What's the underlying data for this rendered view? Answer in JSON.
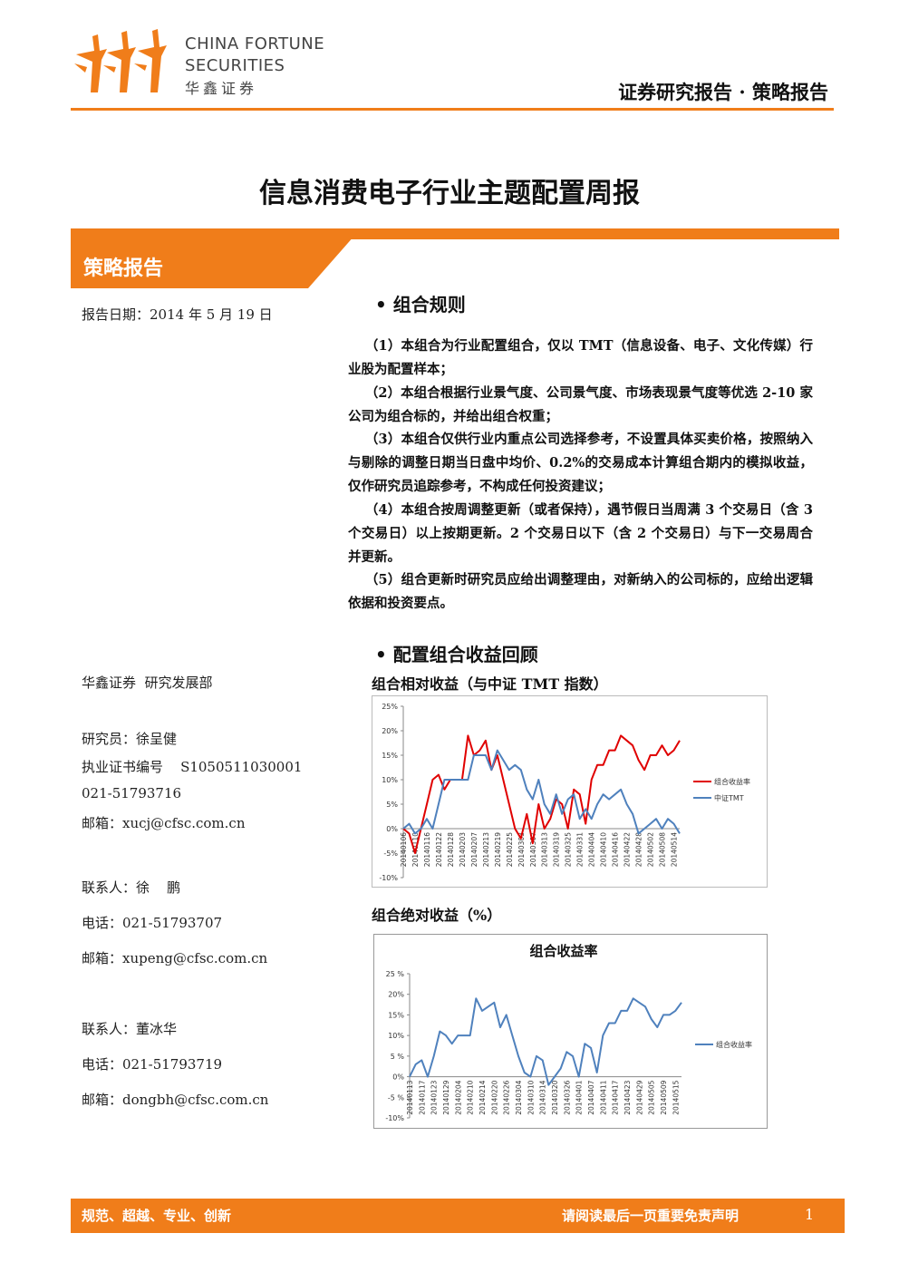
{
  "header": {
    "brand_line1": "CHINA FORTUNE",
    "brand_line2": "SECURITIES",
    "brand_cn": "华鑫证券",
    "category": "证券研究报告 · 策略报告"
  },
  "title": "信息消费电子行业主题配置周报",
  "section_label": "策略报告",
  "report_date": "报告日期：2014 年 5 月 19 日",
  "rules_heading": "组合规则",
  "rules": [
    "（1）本组合为行业配置组合，仅以 TMT（信息设备、电子、文化传媒）行业股为配置样本；",
    "（2）本组合根据行业景气度、公司景气度、市场表现景气度等优选 2-10 家公司为组合标的，并给出组合权重；",
    "（3）本组合仅供行业内重点公司选择参考，不设置具体买卖价格，按照纳入与剔除的调整日期当日盘中均价、0.2%的交易成本计算组合期内的模拟收益，仅作研究员追踪参考，不构成任何投资建议；",
    "（4）本组合按周调整更新（或者保持），遇节假日当周满 3 个交易日（含 3 个交易日）以上按期更新。2 个交易日以下（含 2 个交易日）与下一交易周合并更新。",
    "（5）组合更新时研究员应给出调整理由，对新纳入的公司标的，应给出逻辑依据和投资要点。"
  ],
  "review_heading": "配置组合收益回顾",
  "chart_headings": [
    "组合相对收益（与中证 TMT 指数）",
    "组合绝对收益（%）"
  ],
  "contacts": [
    "华鑫证券  研究发展部",
    "研究员：徐呈健",
    "执业证书编号    S1050511030001",
    "021-51793716",
    "邮箱：xucj@cfsc.com.cn",
    "联系人：徐    鹏",
    "电话：021-51793707",
    "邮箱：xupeng@cfsc.com.cn",
    "联系人：董冰华",
    "电话：021-51793719",
    "邮箱：dongbh@cfsc.com.cn"
  ],
  "chart_data": [
    {
      "type": "line",
      "categories": [
        "20140106",
        null,
        "20140110",
        null,
        "20140116",
        null,
        "20140122",
        null,
        "20140128",
        null,
        "20140203",
        null,
        "20140207",
        null,
        "20140213",
        null,
        "20140219",
        null,
        "20140225",
        null,
        "20140303",
        null,
        "20140307",
        null,
        "20140313",
        null,
        "20140319",
        null,
        "20140325",
        null,
        "20140331",
        null,
        "20140404",
        null,
        "20140410",
        null,
        "20140416",
        null,
        "20140422",
        null,
        "20140428",
        null,
        "20140502",
        null,
        "20140508",
        null,
        "20140514",
        null
      ],
      "series": [
        {
          "name": "组合收益率",
          "color": "#e00000",
          "values": [
            0,
            -1,
            -5,
            0,
            5,
            10,
            11,
            8,
            10,
            10,
            10,
            19,
            15,
            16,
            18,
            12,
            15,
            10,
            5,
            0,
            -2,
            3,
            -3,
            5,
            0,
            2,
            6,
            5,
            0,
            8,
            7,
            1,
            10,
            13,
            13,
            16,
            16,
            19,
            18,
            17,
            14,
            12,
            15,
            15,
            17,
            15,
            16,
            18
          ]
        },
        {
          "name": "中证TMT",
          "color": "#4f81bd",
          "values": [
            0,
            1,
            -1,
            0,
            2,
            0,
            5,
            10,
            10,
            10,
            10,
            10,
            15,
            15,
            15,
            12,
            16,
            14,
            12,
            13,
            12,
            8,
            6,
            10,
            5,
            3,
            7,
            3,
            6,
            7,
            2,
            4,
            2,
            5,
            7,
            6,
            7,
            8,
            5,
            3,
            -1,
            0,
            1,
            2,
            0,
            2,
            1,
            -1
          ]
        }
      ],
      "ylim": [
        -10,
        25
      ],
      "yticks": [
        {
          "value": -10,
          "label": "-10%"
        },
        {
          "value": -5,
          "label": "-5%"
        },
        {
          "value": 0,
          "label": "0%"
        },
        {
          "value": 5,
          "label": "5%"
        },
        {
          "value": 10,
          "label": "10%"
        },
        {
          "value": 15,
          "label": "15%"
        },
        {
          "value": 20,
          "label": "20%"
        },
        {
          "value": 25,
          "label": "25%"
        }
      ],
      "grid": false,
      "legend": "right"
    },
    {
      "type": "line",
      "title": "组合收益率",
      "categories": [
        "20140113",
        null,
        "20140117",
        null,
        "20140123",
        null,
        "20140129",
        null,
        "20140204",
        null,
        "20140210",
        null,
        "20140214",
        null,
        "20140220",
        null,
        "20140226",
        null,
        "20140304",
        null,
        "20140310",
        null,
        "20140314",
        null,
        "20140320",
        null,
        "20140326",
        null,
        "20140401",
        null,
        "20140407",
        null,
        "20140411",
        null,
        "20140417",
        null,
        "20140423",
        null,
        "20140429",
        null,
        "20140505",
        null,
        "20140509",
        null,
        "20140515",
        null
      ],
      "series": [
        {
          "name": "组合收益率",
          "color": "#4f81bd",
          "values": [
            0,
            3,
            4,
            0,
            5,
            11,
            10,
            8,
            10,
            10,
            10,
            19,
            16,
            17,
            18,
            12,
            15,
            10,
            5,
            1,
            0,
            5,
            4,
            -2,
            0,
            2,
            6,
            5,
            0,
            8,
            7,
            1,
            10,
            13,
            13,
            16,
            16,
            19,
            18,
            17,
            14,
            12,
            15,
            15,
            16,
            18
          ]
        }
      ],
      "ylim": [
        -10,
        25
      ],
      "yticks": [
        {
          "value": -10,
          "label": "-10%"
        },
        {
          "value": -5,
          "label": "-5 %"
        },
        {
          "value": 0,
          "label": "0%"
        },
        {
          "value": 5,
          "label": "5 %"
        },
        {
          "value": 10,
          "label": "10%"
        },
        {
          "value": 15,
          "label": "15%"
        },
        {
          "value": 20,
          "label": "20%"
        },
        {
          "value": 25,
          "label": "25 %"
        }
      ],
      "grid": false,
      "legend": "right"
    }
  ],
  "footer": {
    "motto": "规范、超越、专业、创新",
    "disclaimer": "请阅读最后一页重要免责声明",
    "page": "1"
  }
}
